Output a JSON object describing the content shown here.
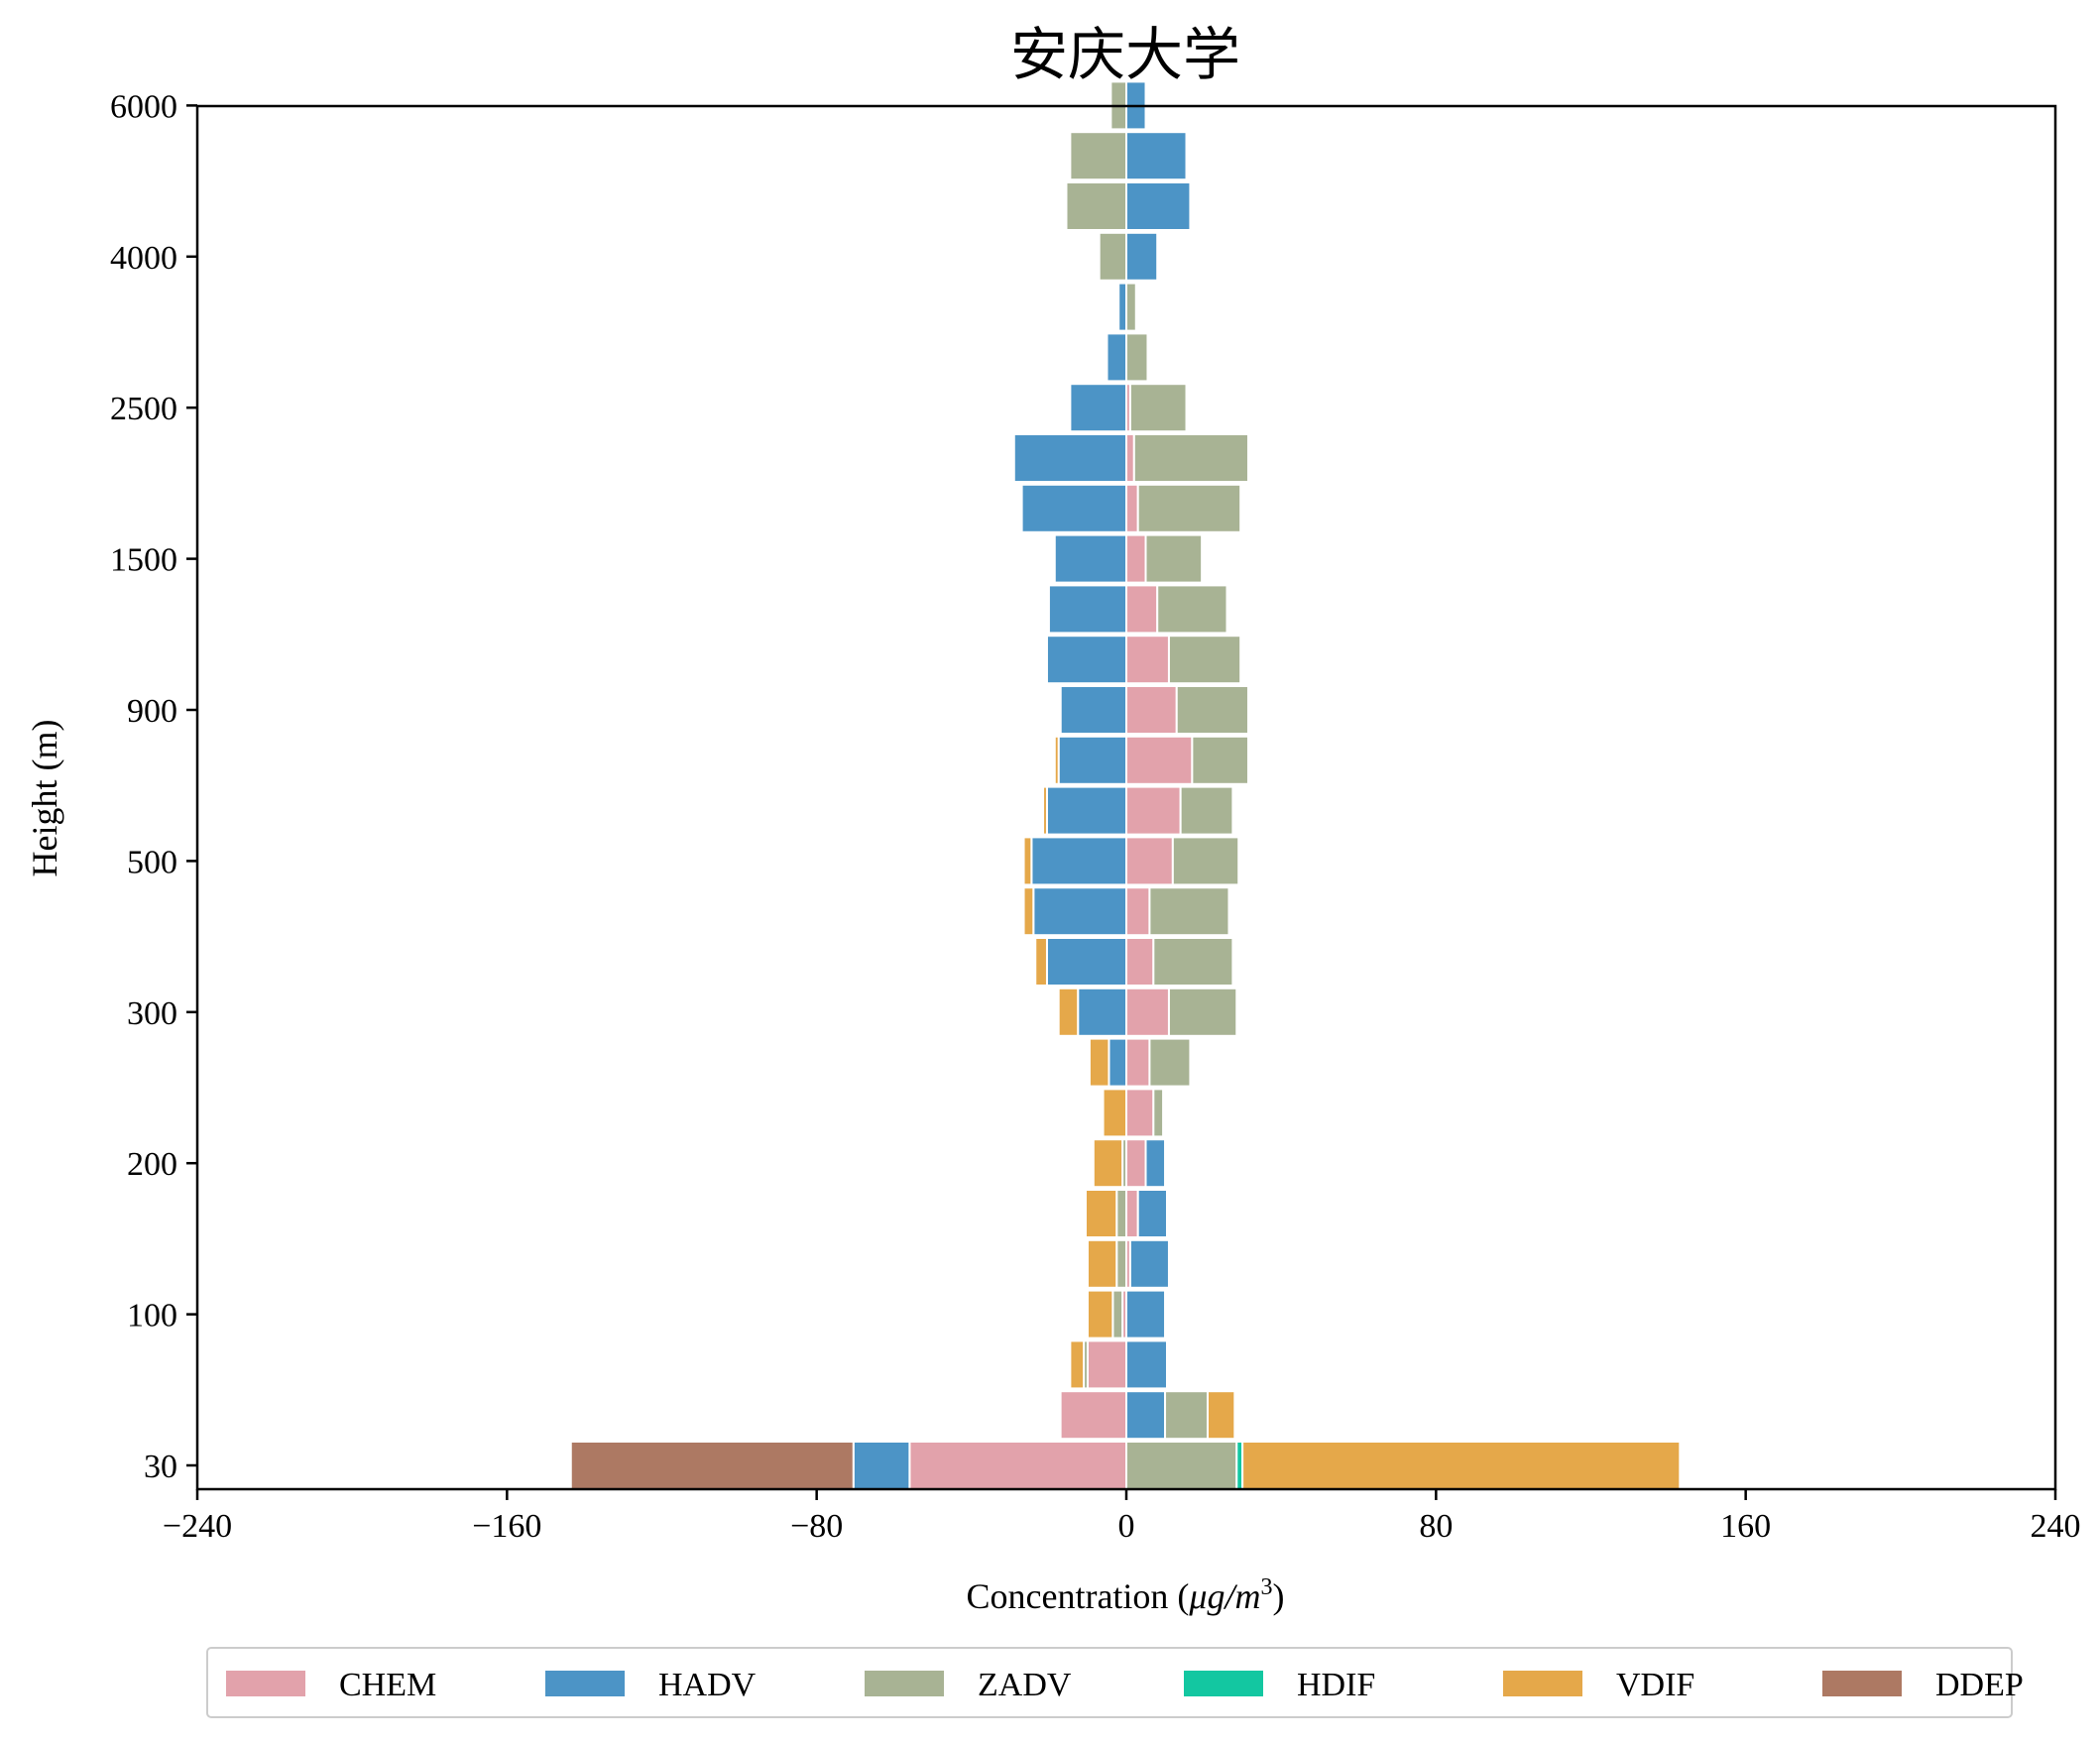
{
  "chart_data": {
    "type": "bar",
    "orientation": "horizontal",
    "stacked": "diverging",
    "title": "安庆大学",
    "xlabel_main": "Concentration (",
    "xlabel_unit": "μg/m",
    "xlabel_sup": "3",
    "xlabel_end": ")",
    "ylabel": "Height (m)",
    "xlim": [
      -240,
      240
    ],
    "xticks": [
      -240,
      -160,
      -80,
      0,
      80,
      160,
      240
    ],
    "xtick_labels": [
      "−240",
      "−160",
      "−80",
      "0",
      "80",
      "160",
      "240"
    ],
    "legend_position": "bottom",
    "grid": false,
    "ytick_labels": [
      {
        "level": 0,
        "label": "30"
      },
      {
        "level": 3,
        "label": "100"
      },
      {
        "level": 6,
        "label": "200"
      },
      {
        "level": 9,
        "label": "300"
      },
      {
        "level": 12,
        "label": "500"
      },
      {
        "level": 15,
        "label": "900"
      },
      {
        "level": 18,
        "label": "1500"
      },
      {
        "level": 21,
        "label": "2500"
      },
      {
        "level": 24,
        "label": "4000"
      },
      {
        "level": 27,
        "label": "6000"
      }
    ],
    "series": [
      {
        "name": "CHEM",
        "color": "#e2a2ab",
        "values": [
          -56,
          -17,
          -10,
          -1,
          1,
          3,
          5,
          7,
          6,
          11,
          7,
          6,
          12,
          14,
          17,
          13,
          11,
          8,
          5,
          3,
          2,
          1,
          0,
          0,
          0,
          0,
          0,
          0
        ]
      },
      {
        "name": "HADV",
        "color": "#4c94c6",
        "values": [
          -14.5,
          10,
          10.5,
          10,
          10,
          7.5,
          5,
          0,
          -4.5,
          -12.5,
          -20.5,
          -24,
          -24.5,
          -20.5,
          -17.5,
          -17,
          -20.5,
          -20,
          -18.5,
          -27,
          -29,
          -14.5,
          -5,
          -2,
          8,
          16.5,
          15.5,
          5
        ]
      },
      {
        "name": "ZADV",
        "color": "#a8b394",
        "values": [
          28.5,
          11,
          -1,
          -2.5,
          -2.5,
          -2.5,
          -1,
          2.5,
          10.5,
          17.5,
          20.5,
          20.5,
          17,
          13.5,
          14.5,
          18.5,
          18.5,
          18,
          14.5,
          26.5,
          29.5,
          14.5,
          5.5,
          2.5,
          -7,
          -15.5,
          -14.5,
          -4
        ]
      },
      {
        "name": "HDIF",
        "color": "#13c7a1",
        "values": [
          1.5,
          0,
          0,
          0,
          0,
          0,
          0,
          0,
          0,
          0,
          0,
          0,
          0,
          0,
          0,
          0,
          0,
          0,
          0,
          0,
          0,
          0,
          0,
          0,
          0,
          0,
          0,
          0
        ]
      },
      {
        "name": "VDIF",
        "color": "#e5a84a",
        "values": [
          113,
          7,
          -3.5,
          -6.5,
          -7.5,
          -8,
          -7.5,
          -6,
          -5,
          -5,
          -3,
          -2.5,
          -2,
          -1,
          -1,
          -0.5,
          0,
          0,
          0,
          0,
          0,
          0,
          0,
          0,
          0,
          0,
          0,
          0
        ]
      },
      {
        "name": "DDEP",
        "color": "#ad7963",
        "values": [
          -73,
          0,
          0,
          0,
          0,
          0,
          0,
          0,
          0,
          0,
          0,
          0,
          0,
          0,
          0,
          0,
          0,
          0,
          0,
          0,
          0,
          0,
          0,
          0,
          0,
          0,
          0,
          0
        ]
      }
    ]
  }
}
